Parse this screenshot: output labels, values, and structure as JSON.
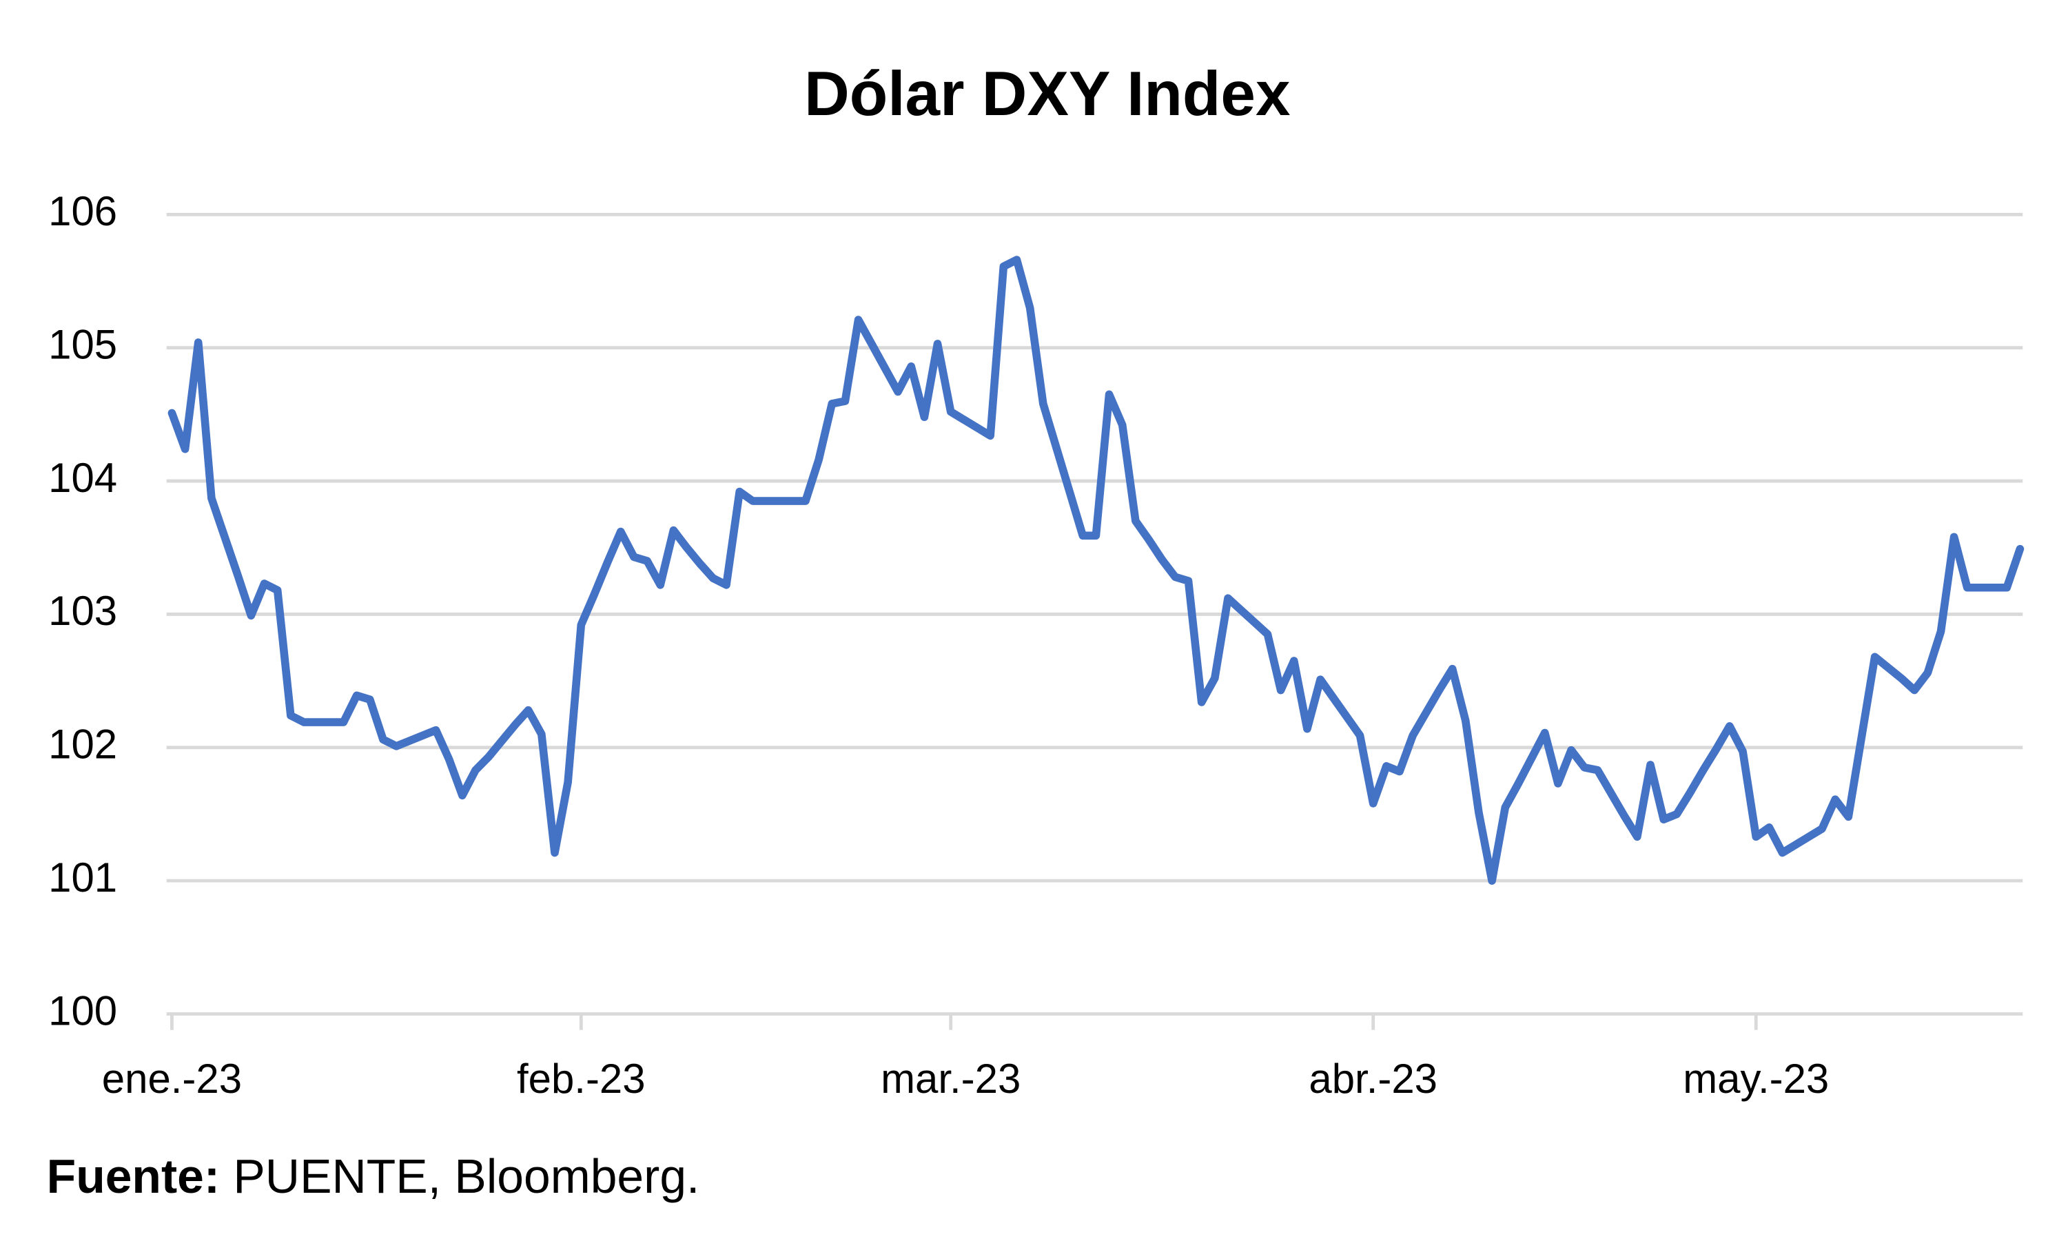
{
  "chart_data": {
    "type": "line",
    "title": "Dólar DXY Index",
    "source": {
      "label": "Fuente:",
      "text": "PUENTE, Bloomberg."
    },
    "categories": [
      "ene.-23",
      null,
      null,
      null,
      null,
      null,
      null,
      null,
      null,
      null,
      null,
      null,
      null,
      null,
      null,
      null,
      null,
      null,
      null,
      null,
      null,
      null,
      null,
      null,
      null,
      null,
      null,
      null,
      null,
      null,
      null,
      "feb.-23",
      null,
      null,
      null,
      null,
      null,
      null,
      null,
      null,
      null,
      null,
      null,
      null,
      null,
      null,
      null,
      null,
      null,
      null,
      null,
      null,
      null,
      null,
      null,
      null,
      null,
      null,
      null,
      "mar.-23",
      null,
      null,
      null,
      null,
      null,
      null,
      null,
      null,
      null,
      null,
      null,
      null,
      null,
      null,
      null,
      null,
      null,
      null,
      null,
      null,
      null,
      null,
      null,
      null,
      null,
      null,
      null,
      null,
      null,
      null,
      null,
      "abr.-23",
      null,
      null,
      null,
      null,
      null,
      null,
      null,
      null,
      null,
      null,
      null,
      null,
      null,
      null,
      null,
      null,
      null,
      null,
      null,
      null,
      null,
      null,
      null,
      null,
      null,
      null,
      null,
      null,
      "may.-23",
      null,
      null,
      null,
      null,
      null,
      null,
      null,
      null,
      null,
      null,
      null,
      null,
      null,
      null,
      null,
      null,
      null,
      null,
      null,
      null
    ],
    "series": [
      {
        "name": "DXY",
        "color": "#4472c4",
        "values": [
          104.51,
          104.24,
          105.04,
          103.87,
          103.58,
          103.29,
          102.99,
          103.23,
          103.18,
          102.24,
          102.19,
          102.19,
          102.19,
          102.19,
          102.39,
          102.36,
          102.06,
          102.01,
          102.05,
          102.09,
          102.13,
          101.91,
          101.64,
          101.83,
          101.93,
          102.05,
          102.17,
          102.28,
          102.1,
          101.21,
          101.74,
          102.92,
          103.15,
          103.39,
          103.62,
          103.43,
          103.4,
          103.22,
          103.63,
          103.5,
          103.38,
          103.27,
          103.22,
          103.92,
          103.85,
          103.85,
          103.85,
          103.85,
          103.85,
          104.16,
          104.58,
          104.6,
          105.21,
          105.03,
          104.85,
          104.67,
          104.86,
          104.48,
          105.03,
          104.52,
          104.46,
          104.4,
          104.34,
          105.61,
          105.66,
          105.3,
          104.58,
          104.25,
          103.92,
          103.59,
          103.59,
          104.65,
          104.42,
          103.7,
          103.56,
          103.41,
          103.28,
          103.25,
          102.34,
          102.52,
          103.12,
          103.03,
          102.94,
          102.85,
          102.43,
          102.65,
          102.14,
          102.51,
          102.37,
          102.23,
          102.09,
          101.58,
          101.86,
          101.82,
          102.09,
          102.26,
          102.43,
          102.59,
          102.2,
          101.51,
          101.0,
          101.55,
          101.73,
          101.92,
          102.11,
          101.73,
          101.98,
          101.85,
          101.83,
          101.66,
          101.49,
          101.33,
          101.87,
          101.46,
          101.5,
          101.66,
          101.83,
          101.99,
          102.16,
          101.97,
          101.33,
          101.4,
          101.21,
          101.27,
          101.33,
          101.39,
          101.61,
          101.48,
          102.08,
          102.68,
          102.6,
          102.52,
          102.43,
          102.56,
          102.87,
          103.58,
          103.2,
          103.2,
          103.2,
          103.2,
          103.49
        ]
      }
    ],
    "ylim": [
      100,
      106
    ],
    "yticks": [
      100,
      101,
      102,
      103,
      104,
      105,
      106
    ],
    "grid": true
  }
}
